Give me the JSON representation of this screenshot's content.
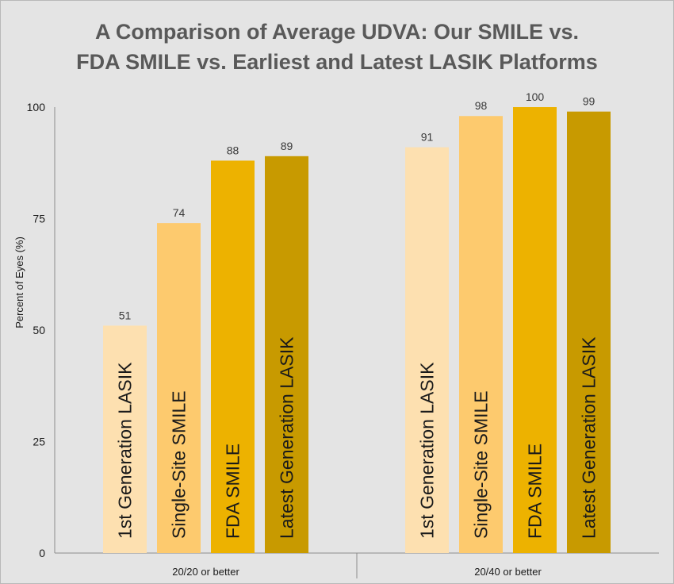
{
  "chart_data": {
    "type": "bar",
    "title_lines": [
      "A Comparison of Average UDVA: Our SMILE vs.",
      "FDA SMILE vs. Earliest and Latest LASIK Platforms"
    ],
    "ylabel": "Percent of Eyes (%)",
    "xlabel": "",
    "ylim": [
      0,
      100
    ],
    "y_ticks": [
      "0",
      "25",
      "50",
      "75",
      "100"
    ],
    "categories": [
      "20/20 or better",
      "20/40 or better"
    ],
    "series": [
      {
        "name": "1st Generation LASIK",
        "color": "#fde0b0",
        "values": [
          51,
          91
        ]
      },
      {
        "name": "Single-Site SMILE",
        "color": "#fdca6e",
        "values": [
          74,
          98
        ]
      },
      {
        "name": "FDA SMILE",
        "color": "#edb200",
        "values": [
          88,
          100
        ]
      },
      {
        "name": "Latest Generation LASIK",
        "color": "#c89a00",
        "values": [
          89,
          99
        ]
      }
    ],
    "grid": false,
    "legend": "none (labels printed inside bars)"
  }
}
